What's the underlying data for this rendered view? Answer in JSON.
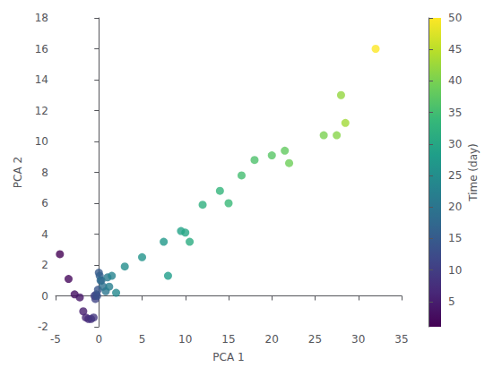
{
  "chart_data": {
    "type": "scatter",
    "xlabel": "PCA 1",
    "ylabel": "PCA 2",
    "x": [
      -4.5,
      -3.5,
      -2.8,
      -2.2,
      -1.8,
      -1.5,
      -1.2,
      -0.9,
      -0.6,
      -0.5,
      -0.4,
      -0.3,
      -0.2,
      -0.1,
      0.0,
      0.1,
      0.2,
      0.3,
      0.5,
      0.8,
      1.0,
      1.2,
      1.5,
      2.0,
      3.0,
      5.0,
      7.5,
      8.0,
      9.5,
      10.0,
      10.5,
      12.0,
      14.0,
      15.0,
      16.5,
      18.0,
      20.0,
      21.5,
      22.0,
      26.0,
      27.5,
      28.0,
      28.5,
      32.0
    ],
    "y": [
      2.7,
      1.1,
      0.1,
      -0.1,
      -1.0,
      -1.4,
      -1.5,
      -1.5,
      -1.4,
      0.0,
      -0.2,
      0.1,
      0.0,
      0.4,
      1.5,
      1.3,
      1.0,
      1.0,
      0.6,
      0.3,
      1.2,
      0.6,
      1.3,
      0.2,
      1.9,
      2.5,
      3.5,
      1.3,
      4.2,
      4.1,
      3.5,
      5.9,
      6.8,
      6.0,
      7.8,
      8.8,
      9.1,
      9.4,
      8.6,
      10.4,
      10.4,
      13.0,
      11.2,
      16.0
    ],
    "color_values": [
      1,
      2,
      3,
      4,
      5,
      6,
      7,
      8,
      9,
      10,
      11,
      12,
      13,
      14,
      15,
      16,
      17,
      18,
      19,
      20,
      21,
      22,
      23,
      24,
      25,
      26,
      27,
      28,
      29,
      30,
      31,
      32,
      33,
      34,
      35,
      36,
      37,
      38,
      39,
      40,
      41,
      42,
      43,
      50
    ],
    "colorbar_label": "Time (day)",
    "colorbar_range": [
      1,
      50
    ],
    "colorbar_ticks": [
      5,
      10,
      15,
      20,
      25,
      30,
      35,
      40,
      45,
      50
    ],
    "xlim": [
      -5,
      35
    ],
    "xticks": [
      -5,
      0,
      5,
      10,
      15,
      20,
      25,
      30,
      35
    ],
    "ylim": [
      -2,
      18
    ],
    "yticks": [
      -2,
      0,
      2,
      4,
      6,
      8,
      10,
      12,
      14,
      16,
      18
    ],
    "grid": false
  }
}
